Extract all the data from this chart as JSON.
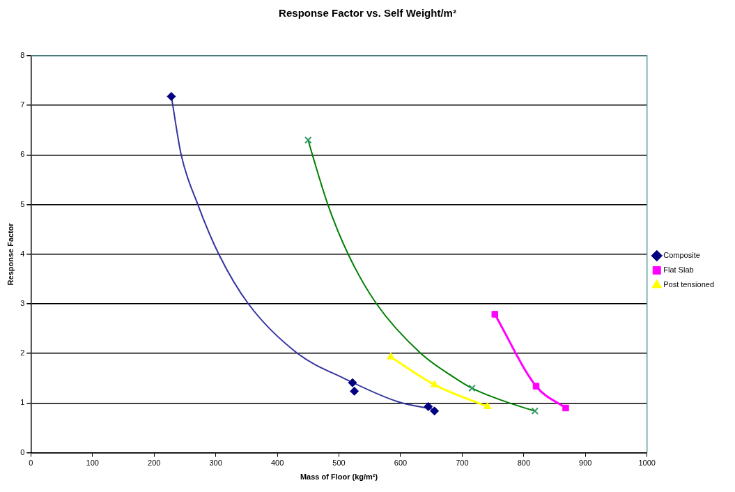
{
  "chart_data": {
    "type": "scatter",
    "title": "Response Factor vs. Self Weight/m²",
    "xlabel": "Mass of Floor (kg/m²)",
    "ylabel": "Response Factor",
    "xlim": [
      0,
      1000
    ],
    "xticks": [
      0,
      100,
      200,
      300,
      400,
      500,
      600,
      700,
      800,
      900,
      1000
    ],
    "ylim": [
      0,
      8
    ],
    "yticks": [
      0,
      1,
      2,
      3,
      4,
      5,
      6,
      7,
      8
    ],
    "grid": "y",
    "legend": "right",
    "series": [
      {
        "name": "Composite",
        "type": "scatter",
        "marker": "diamond",
        "color": "#000080",
        "x": [
          228,
          522,
          525,
          645,
          655
        ],
        "values": [
          7.18,
          1.41,
          1.24,
          0.93,
          0.84
        ]
      },
      {
        "type": "line",
        "marker": "none",
        "color": "#3333a0",
        "x": [
          228,
          244,
          271,
          305,
          353,
          433,
          508,
          595,
          655
        ],
        "values": [
          7.18,
          6,
          5,
          4,
          3,
          2,
          1.5,
          1.03,
          0.87
        ]
      },
      {
        "name": "Flat Slab",
        "type": "line",
        "marker": "square",
        "color": "#ff00ff",
        "x": [
          753,
          820,
          868
        ],
        "values": [
          2.79,
          1.34,
          0.9
        ]
      },
      {
        "name": "Post tensioned",
        "type": "line",
        "marker": "triangle",
        "color": "#ffff00",
        "x": [
          584,
          655,
          741
        ],
        "values": [
          1.93,
          1.37,
          0.93
        ]
      },
      {
        "marker": "cross",
        "color": "#339966",
        "x": [
          450,
          716,
          818
        ],
        "values": [
          6.3,
          1.3,
          0.84
        ]
      },
      {
        "type": "line",
        "marker": "none",
        "color": "#008000",
        "x": [
          450,
          457,
          482,
          515,
          561,
          633,
          689,
          716,
          777,
          818
        ],
        "values": [
          6.3,
          6,
          5,
          4,
          3,
          2,
          1.5,
          1.3,
          1,
          0.84
        ]
      }
    ]
  }
}
